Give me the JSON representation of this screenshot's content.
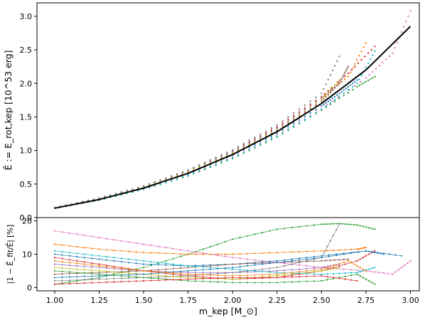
{
  "chart_data": [
    {
      "panel": "top",
      "type": "scatter",
      "ylabel": "Ē := E_rot,kep [10^53 erg]",
      "xlim": [
        0.9,
        3.05
      ],
      "ylim": [
        0.0,
        3.2
      ],
      "yticks": [
        0.0,
        0.5,
        1.0,
        1.5,
        2.0,
        2.5,
        3.0
      ],
      "ytick_labels": [
        "0.0",
        "0.5",
        "1.0",
        "1.5",
        "2.0",
        "2.5",
        "3.0"
      ],
      "grid": false,
      "legend": "none",
      "fit_curve": {
        "color": "#000000",
        "x": [
          1.0,
          1.25,
          1.5,
          1.75,
          2.0,
          2.25,
          2.5,
          2.75,
          3.0
        ],
        "y": [
          0.14,
          0.27,
          0.44,
          0.66,
          0.94,
          1.28,
          1.7,
          2.2,
          2.85
        ]
      },
      "series": [
        {
          "color": "#1f77b4",
          "x": [
            1.0,
            1.25,
            1.5,
            1.75,
            2.0,
            2.25,
            2.5,
            2.6,
            2.7
          ],
          "y": [
            0.15,
            0.28,
            0.45,
            0.66,
            0.93,
            1.25,
            1.66,
            1.85,
            2.05
          ]
        },
        {
          "color": "#ff7f0e",
          "x": [
            1.0,
            1.25,
            1.5,
            1.75,
            2.0,
            2.25,
            2.5,
            2.65,
            2.75
          ],
          "y": [
            0.14,
            0.27,
            0.44,
            0.68,
            0.97,
            1.33,
            1.78,
            2.1,
            2.6
          ]
        },
        {
          "color": "#2ca02c",
          "x": [
            1.0,
            1.25,
            1.5,
            1.75,
            2.0,
            2.25,
            2.5,
            2.7,
            2.8
          ],
          "y": [
            0.14,
            0.26,
            0.42,
            0.62,
            0.88,
            1.2,
            1.6,
            1.95,
            2.1
          ]
        },
        {
          "color": "#d62728",
          "x": [
            1.0,
            1.25,
            1.5,
            1.75,
            2.0,
            2.25,
            2.5,
            2.65,
            2.8
          ],
          "y": [
            0.15,
            0.29,
            0.47,
            0.7,
            0.99,
            1.35,
            1.8,
            2.15,
            2.55
          ]
        },
        {
          "color": "#9467bd",
          "x": [
            1.0,
            1.25,
            1.5,
            1.75,
            2.0,
            2.25,
            2.5,
            2.6
          ],
          "y": [
            0.15,
            0.28,
            0.46,
            0.69,
            0.98,
            1.33,
            1.78,
            2.0
          ]
        },
        {
          "color": "#8c564b",
          "x": [
            1.0,
            1.25,
            1.5,
            1.75,
            2.0,
            2.25,
            2.5,
            2.6,
            2.65
          ],
          "y": [
            0.14,
            0.27,
            0.44,
            0.67,
            0.95,
            1.3,
            1.73,
            2.0,
            2.25
          ]
        },
        {
          "color": "#e377c2",
          "x": [
            1.0,
            1.25,
            1.5,
            1.75,
            2.0,
            2.25,
            2.5,
            2.75,
            2.9,
            3.0
          ],
          "y": [
            0.14,
            0.26,
            0.43,
            0.64,
            0.9,
            1.22,
            1.62,
            2.08,
            2.45,
            3.08
          ]
        },
        {
          "color": "#7f7f7f",
          "x": [
            1.0,
            1.25,
            1.5,
            1.75,
            2.0,
            2.25,
            2.5,
            2.6
          ],
          "y": [
            0.15,
            0.29,
            0.47,
            0.71,
            1.01,
            1.38,
            1.85,
            2.4
          ]
        },
        {
          "color": "#bcbd22",
          "x": [
            1.0,
            1.25,
            1.5,
            1.75,
            2.0,
            2.25,
            2.5,
            2.6
          ],
          "y": [
            0.14,
            0.27,
            0.45,
            0.68,
            0.96,
            1.31,
            1.76,
            2.05
          ]
        },
        {
          "color": "#17becf",
          "x": [
            1.0,
            1.25,
            1.5,
            1.75,
            2.0,
            2.25,
            2.5,
            2.7,
            2.8
          ],
          "y": [
            0.14,
            0.26,
            0.42,
            0.63,
            0.89,
            1.21,
            1.61,
            2.0,
            2.48
          ]
        }
      ]
    },
    {
      "panel": "bottom",
      "type": "line",
      "ylabel": "|1 − Ē_fit/Ē| [%]",
      "xlabel": "m_kep [M_⊙]",
      "xlim": [
        0.9,
        3.05
      ],
      "ylim": [
        -1.0,
        21.0
      ],
      "yticks": [
        0,
        10,
        20
      ],
      "ytick_labels": [
        "0",
        "10",
        "20"
      ],
      "xticks": [
        1.0,
        1.25,
        1.5,
        1.75,
        2.0,
        2.25,
        2.5,
        2.75,
        3.0
      ],
      "xtick_labels": [
        "1.00",
        "1.25",
        "1.50",
        "1.75",
        "2.00",
        "2.25",
        "2.50",
        "2.75",
        "3.00"
      ],
      "grid": false,
      "legend": "none",
      "series": [
        {
          "color": "#2ca02c",
          "x": [
            1.0,
            1.25,
            1.5,
            1.75,
            2.0,
            2.25,
            2.5,
            2.6,
            2.7,
            2.8
          ],
          "y": [
            1.0,
            3.0,
            6.0,
            10.0,
            14.5,
            17.5,
            19.0,
            19.2,
            18.8,
            17.5
          ]
        },
        {
          "color": "#e377c2",
          "x": [
            1.0,
            1.25,
            1.5,
            1.75,
            2.0,
            2.25,
            2.5,
            2.75,
            2.9,
            3.0
          ],
          "y": [
            17.0,
            15.0,
            13.0,
            11.0,
            9.0,
            7.5,
            6.0,
            5.0,
            4.0,
            8.0
          ]
        },
        {
          "color": "#ff7f0e",
          "x": [
            1.0,
            1.25,
            1.5,
            1.75,
            2.0,
            2.25,
            2.5,
            2.7,
            2.75
          ],
          "y": [
            13.0,
            11.5,
            10.5,
            10.0,
            10.0,
            10.5,
            11.0,
            11.5,
            12.0
          ]
        },
        {
          "color": "#1f77b4",
          "x": [
            1.0,
            1.25,
            1.5,
            1.75,
            2.0,
            2.25,
            2.5,
            2.75,
            2.85
          ],
          "y": [
            10.0,
            8.5,
            7.0,
            6.5,
            7.0,
            8.0,
            9.5,
            11.0,
            10.0
          ]
        },
        {
          "color": "#d62728",
          "x": [
            1.0,
            1.25,
            1.5,
            1.75,
            2.0,
            2.25,
            2.5,
            2.7,
            2.8
          ],
          "y": [
            9.0,
            7.0,
            5.0,
            3.5,
            2.5,
            3.0,
            5.0,
            8.0,
            11.0
          ]
        },
        {
          "color": "#9467bd",
          "x": [
            1.0,
            1.25,
            1.5,
            1.75,
            2.0,
            2.25,
            2.5,
            2.6
          ],
          "y": [
            7.0,
            6.0,
            5.0,
            4.5,
            4.5,
            5.0,
            6.0,
            7.0
          ]
        },
        {
          "color": "#8c564b",
          "x": [
            1.0,
            1.25,
            1.5,
            1.75,
            2.0,
            2.25,
            2.5,
            2.65
          ],
          "y": [
            4.0,
            4.5,
            5.0,
            6.0,
            7.0,
            7.5,
            8.0,
            8.5
          ]
        },
        {
          "color": "#7f7f7f",
          "x": [
            1.0,
            1.25,
            1.5,
            1.75,
            2.0,
            2.25,
            2.5,
            2.6
          ],
          "y": [
            2.0,
            2.5,
            3.0,
            3.5,
            4.5,
            6.0,
            9.0,
            19.0
          ]
        },
        {
          "color": "#bcbd22",
          "x": [
            1.0,
            1.25,
            1.5,
            1.75,
            2.0,
            2.25,
            2.5,
            2.6
          ],
          "y": [
            6.0,
            5.0,
            4.0,
            3.0,
            2.5,
            3.5,
            5.0,
            6.0
          ]
        },
        {
          "color": "#17becf",
          "x": [
            1.0,
            1.25,
            1.5,
            1.75,
            2.0,
            2.25,
            2.5,
            2.7,
            2.8
          ],
          "y": [
            11.0,
            9.5,
            8.0,
            6.5,
            5.5,
            4.5,
            4.0,
            4.5,
            6.0
          ]
        },
        {
          "color": "#1f77b4",
          "x": [
            1.0,
            1.25,
            1.5,
            1.75,
            2.0,
            2.25,
            2.5,
            2.75,
            2.95
          ],
          "y": [
            3.0,
            3.5,
            4.0,
            5.0,
            6.0,
            7.5,
            9.0,
            11.0,
            9.5
          ]
        },
        {
          "color": "#2ca02c",
          "x": [
            1.0,
            1.25,
            1.5,
            1.75,
            2.0,
            2.25,
            2.5,
            2.7,
            2.8
          ],
          "y": [
            5.0,
            4.0,
            3.0,
            2.0,
            1.5,
            1.5,
            2.0,
            4.0,
            1.0
          ]
        },
        {
          "color": "#ff7f0e",
          "x": [
            1.0,
            1.25,
            1.5,
            1.75,
            2.0,
            2.25,
            2.5,
            2.65,
            2.75
          ],
          "y": [
            8.0,
            6.5,
            5.0,
            4.0,
            3.5,
            4.0,
            5.5,
            8.0,
            5.0
          ]
        },
        {
          "color": "#d62728",
          "x": [
            1.0,
            1.25,
            1.5,
            1.75,
            2.0,
            2.25,
            2.5,
            2.7
          ],
          "y": [
            1.0,
            1.5,
            2.0,
            2.5,
            3.0,
            3.0,
            3.5,
            2.0
          ]
        }
      ]
    }
  ]
}
